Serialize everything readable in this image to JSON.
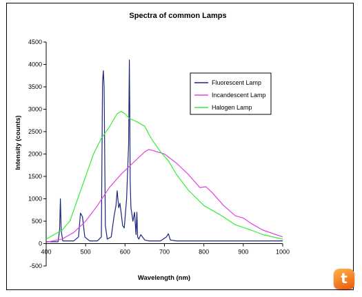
{
  "chart_data": {
    "type": "line",
    "title": "Spectra of common Lamps",
    "xlabel": "Wavelength (nm)",
    "ylabel": "Intensity (counts)",
    "xlim": [
      400,
      1000
    ],
    "ylim": [
      -500,
      4500
    ],
    "xticks": [
      400,
      500,
      600,
      700,
      800,
      900,
      1000
    ],
    "yticks": [
      -500,
      0,
      500,
      1000,
      1500,
      2000,
      2500,
      3000,
      3500,
      4000,
      4500
    ],
    "grid": false,
    "legend_position": "top-right",
    "series": [
      {
        "name": "Fluorescent Lamp",
        "color": "#1a237e",
        "x": [
          400,
          430,
          434,
          436,
          438,
          442,
          470,
          482,
          487,
          492,
          498,
          510,
          530,
          540,
          543,
          545,
          547,
          550,
          555,
          565,
          572,
          577,
          580,
          584,
          587,
          590,
          594,
          598,
          604,
          609,
          611,
          612,
          613,
          615,
          620,
          624,
          628,
          630,
          632,
          635,
          640,
          650,
          660,
          690,
          705,
          710,
          715,
          730,
          760,
          800,
          850,
          900,
          950,
          1000
        ],
        "y": [
          40,
          40,
          300,
          1000,
          300,
          60,
          60,
          150,
          680,
          600,
          150,
          60,
          60,
          150,
          3600,
          3860,
          3500,
          400,
          100,
          150,
          600,
          850,
          1180,
          800,
          900,
          700,
          400,
          350,
          1000,
          2200,
          4100,
          3000,
          1400,
          800,
          500,
          700,
          200,
          700,
          150,
          100,
          200,
          80,
          60,
          60,
          150,
          220,
          80,
          60,
          60,
          60,
          60,
          60,
          60,
          60
        ]
      },
      {
        "name": "Incandescent Lamp",
        "color": "#e040e0",
        "x": [
          400,
          440,
          470,
          500,
          530,
          560,
          590,
          620,
          650,
          660,
          670,
          700,
          730,
          760,
          790,
          805,
          820,
          850,
          880,
          900,
          920,
          950,
          1000
        ],
        "y": [
          30,
          100,
          250,
          500,
          850,
          1250,
          1550,
          1800,
          2050,
          2100,
          2080,
          2000,
          1800,
          1550,
          1250,
          1270,
          1150,
          850,
          620,
          570,
          450,
          300,
          150
        ]
      },
      {
        "name": "Halogen Lamp",
        "color": "#33ee33",
        "x": [
          400,
          420,
          440,
          460,
          480,
          500,
          520,
          540,
          560,
          580,
          590,
          600,
          610,
          630,
          650,
          660,
          670,
          690,
          710,
          730,
          760,
          800,
          840,
          880,
          900,
          920,
          950,
          1000
        ],
        "y": [
          100,
          200,
          300,
          500,
          1000,
          1500,
          2000,
          2350,
          2600,
          2900,
          2950,
          2900,
          2800,
          2720,
          2620,
          2450,
          2300,
          2050,
          1850,
          1550,
          1200,
          850,
          650,
          420,
          360,
          300,
          200,
          100
        ]
      }
    ]
  }
}
